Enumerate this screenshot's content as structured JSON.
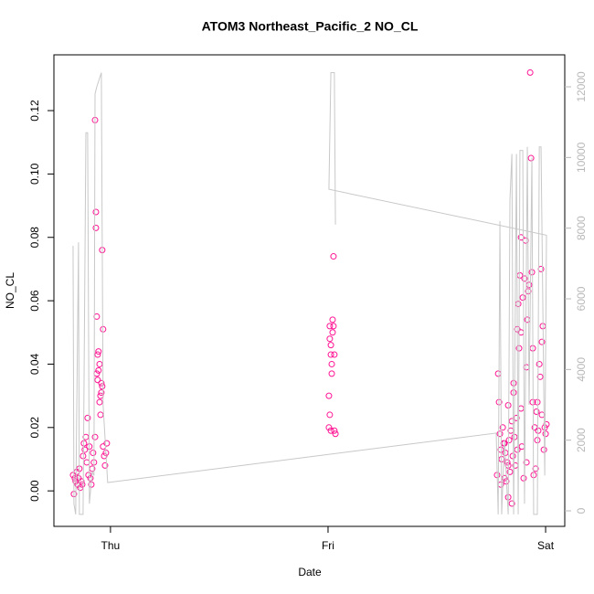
{
  "chart_data": {
    "type": "scatter",
    "title": "ATOM3 Northeast_Pacific_2 NO_CL",
    "x_label": "Date",
    "y_label": "NO_CL",
    "xlim": [
      -0.26,
      2.088
    ],
    "xticks": [
      {
        "value": 0,
        "label": "Thu"
      },
      {
        "value": 1,
        "label": "Fri"
      },
      {
        "value": 2,
        "label": "Sat"
      }
    ],
    "ylim": [
      -0.0112,
      0.1376
    ],
    "yticks": [
      {
        "value": 0,
        "label": "0.00"
      },
      0.02,
      0.04,
      0.06,
      0.08,
      {
        "value": 0.1,
        "label": "0.10"
      },
      0.12
    ],
    "y2lim": [
      -440,
      12905
    ],
    "y2ticks": [
      0,
      2000,
      4000,
      6000,
      8000,
      10000,
      12000
    ],
    "series": [
      {
        "color": "#ff1493",
        "x": [
          -0.172,
          -0.168,
          -0.164,
          -0.16,
          -0.155,
          -0.151,
          -0.147,
          -0.143,
          -0.139,
          -0.134,
          -0.13,
          -0.126,
          -0.122,
          -0.118,
          -0.113,
          -0.109,
          -0.105,
          -0.101,
          -0.097,
          -0.092,
          -0.088,
          -0.084,
          -0.08,
          -0.076,
          -0.071,
          -0.071,
          -0.067,
          -0.067,
          -0.063,
          -0.063,
          -0.059,
          -0.059,
          -0.055,
          -0.055,
          -0.05,
          -0.05,
          -0.046,
          -0.046,
          -0.042,
          -0.042,
          -0.038,
          -0.038,
          -0.034,
          -0.034,
          -0.029,
          -0.025,
          -0.021,
          -0.017,
          1.004,
          1.004,
          1.008,
          1.008,
          1.013,
          1.013,
          1.017,
          1.017,
          1.021,
          1.021,
          1.025,
          1.025,
          1.029,
          1.029,
          1.034,
          1.008,
          1.013,
          1.777,
          1.782,
          1.786,
          1.79,
          1.794,
          1.798,
          1.803,
          1.807,
          1.811,
          1.815,
          1.819,
          1.824,
          1.828,
          1.832,
          1.836,
          1.84,
          1.845,
          1.849,
          1.853,
          1.857,
          1.861,
          1.866,
          1.87,
          1.874,
          1.878,
          1.882,
          1.887,
          1.887,
          1.891,
          1.895,
          1.899,
          1.903,
          1.908,
          1.912,
          1.916,
          1.92,
          1.924,
          1.929,
          1.933,
          1.937,
          1.941,
          1.945,
          1.95,
          1.954,
          1.958,
          1.962,
          1.966,
          1.971,
          1.975,
          1.979,
          1.983,
          1.987,
          1.992,
          1.996,
          2.0,
          2.004,
          1.794,
          1.811,
          1.828,
          1.845,
          1.87,
          1.912,
          1.941,
          1.962,
          1.983,
          1.828,
          1.853,
          1.887
        ],
        "values": [
          0.005,
          -0.001,
          0.004,
          0.003,
          0.006,
          0.002,
          0.004,
          0.007,
          0.001,
          0.003,
          0.002,
          0.011,
          0.015,
          0.013,
          0.017,
          0.009,
          0.023,
          0.005,
          0.014,
          0.004,
          0.002,
          0.007,
          0.012,
          0.009,
          0.017,
          0.117,
          0.088,
          0.083,
          0.055,
          0.037,
          0.043,
          0.035,
          0.044,
          0.038,
          0.04,
          0.028,
          0.03,
          0.024,
          0.034,
          0.031,
          0.033,
          0.076,
          0.051,
          0.014,
          0.011,
          0.008,
          0.012,
          0.015,
          0.03,
          0.02,
          0.052,
          0.048,
          0.046,
          0.043,
          0.04,
          0.037,
          0.054,
          0.05,
          0.074,
          0.052,
          0.043,
          0.019,
          0.018,
          0.024,
          0.019,
          0.005,
          0.037,
          0.028,
          0.018,
          0.013,
          0.01,
          0.02,
          0.015,
          0.004,
          0.012,
          0.003,
          0.009,
          -0.002,
          0.016,
          0.006,
          0.019,
          0.022,
          0.011,
          0.031,
          0.017,
          0.008,
          0.023,
          0.051,
          0.059,
          0.045,
          0.068,
          0.08,
          0.026,
          0.014,
          0.061,
          0.004,
          0.067,
          0.079,
          0.039,
          0.054,
          0.063,
          0.065,
          0.132,
          0.105,
          0.069,
          0.028,
          0.005,
          0.02,
          0.007,
          0.025,
          0.028,
          0.019,
          0.04,
          0.036,
          0.07,
          0.047,
          0.052,
          0.013,
          0.02,
          0.018,
          0.021,
          0.002,
          0.015,
          0.008,
          -0.004,
          0.013,
          0.009,
          0.045,
          0.016,
          0.024,
          0.027,
          0.034,
          0.05
        ]
      },
      {
        "type": "line",
        "axis": "y2",
        "color": "#c8c8c8",
        "x": [
          -0.172,
          -0.168,
          -0.16,
          -0.147,
          -0.143,
          -0.126,
          -0.113,
          -0.105,
          -0.097,
          -0.084,
          -0.076,
          -0.071,
          -0.063,
          -0.042,
          -0.034,
          -0.013,
          1.773,
          1.782,
          1.79,
          1.798,
          1.811,
          1.828,
          1.836,
          1.845,
          1.853,
          1.866,
          1.874,
          1.882,
          1.895,
          1.903,
          1.916,
          1.924,
          1.937,
          1.945,
          1.962,
          1.971,
          1.979,
          1.996,
          2.004,
          1.004,
          1.013,
          1.029,
          1.034
        ],
        "values": [
          7500,
          200,
          -100,
          7600,
          -100,
          -100,
          10700,
          10700,
          200,
          1100,
          1000,
          11800,
          12000,
          12400,
          3000,
          800,
          2200,
          -100,
          8200,
          -100,
          2000,
          -100,
          8800,
          10100,
          -100,
          10100,
          -100,
          10200,
          10200,
          200,
          10300,
          3000,
          10000,
          -100,
          -100,
          10300,
          10300,
          1000,
          7800,
          9100,
          12400,
          12400,
          8100
        ]
      }
    ]
  }
}
